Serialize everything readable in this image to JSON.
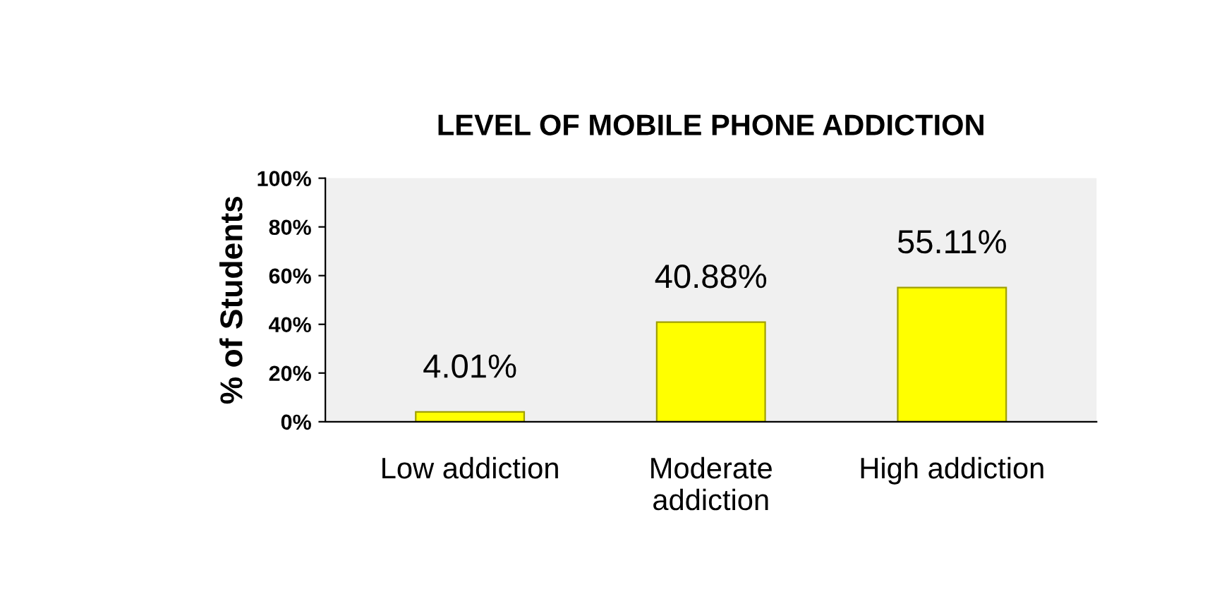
{
  "chart_data": {
    "type": "bar",
    "title": "LEVEL OF MOBILE PHONE ADDICTION",
    "ylabel": "% of Students",
    "categories": [
      "Low addiction",
      "Moderate addiction",
      "High addiction"
    ],
    "values": [
      4.01,
      40.88,
      55.11
    ],
    "color": "#ffff00",
    "value_labels": [
      "4.01%",
      "40.88%",
      "55.11%"
    ],
    "ylim": [
      0,
      100
    ],
    "yticks": [
      {
        "value": 0,
        "label": "0%"
      },
      {
        "value": 20,
        "label": "20%"
      },
      {
        "value": 40,
        "label": "40%"
      },
      {
        "value": 60,
        "label": "60%"
      },
      {
        "value": 80,
        "label": "80%"
      },
      {
        "value": 100,
        "label": "100%"
      }
    ],
    "grid": false,
    "legend": false
  }
}
